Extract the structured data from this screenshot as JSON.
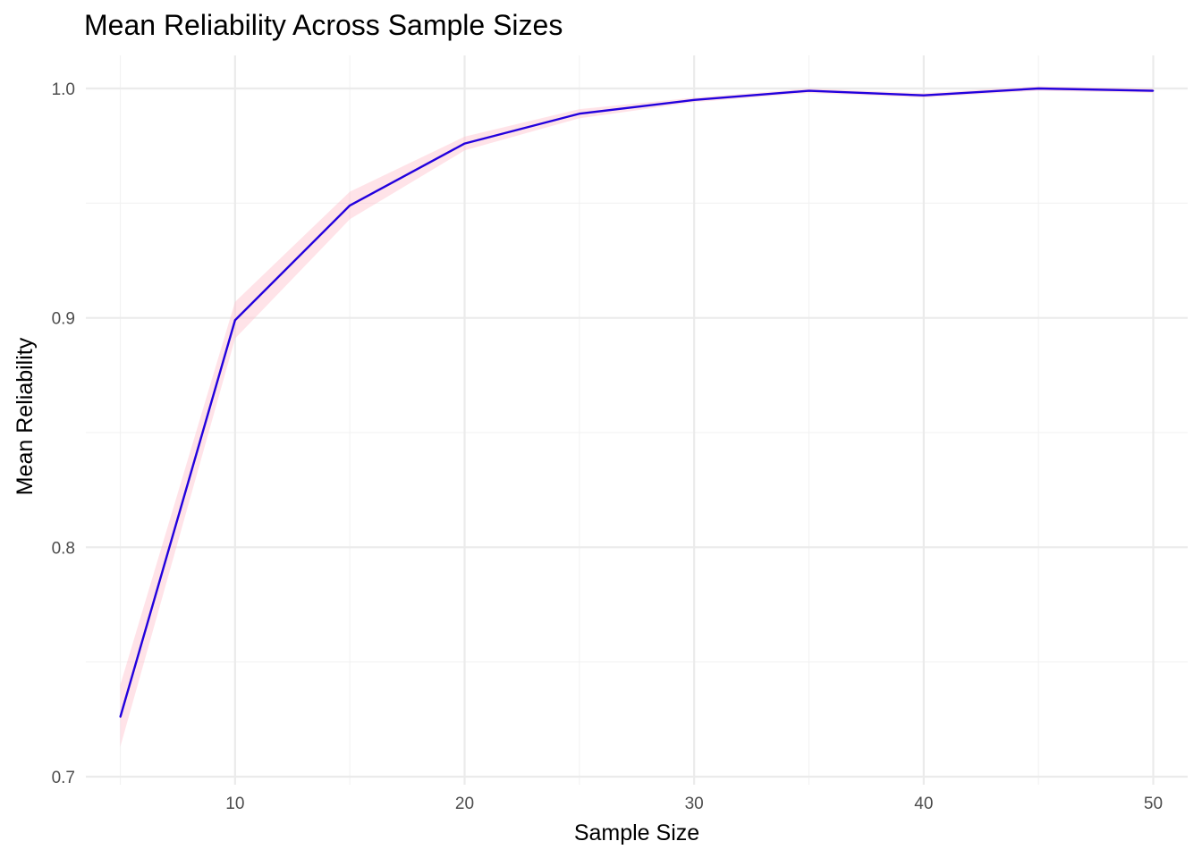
{
  "chart_data": {
    "type": "line",
    "title": "Mean Reliability Across Sample Sizes",
    "xlabel": "Sample Size",
    "ylabel": "Mean Reliability",
    "x": [
      5,
      10,
      15,
      20,
      25,
      30,
      35,
      40,
      45,
      50
    ],
    "series": [
      {
        "values": [
          0.726,
          0.899,
          0.949,
          0.976,
          0.989,
          0.995,
          0.999,
          0.997,
          1.0,
          0.999
        ],
        "lower": [
          0.713,
          0.891,
          0.943,
          0.973,
          0.987,
          0.994,
          0.998,
          0.996,
          0.999,
          0.998
        ],
        "upper": [
          0.74,
          0.907,
          0.955,
          0.979,
          0.991,
          0.996,
          1.0,
          0.998,
          1.001,
          1.0
        ],
        "color": "#2200dd",
        "band_color": "#ffc0cb"
      }
    ],
    "xlim": [
      3.5,
      51.5
    ],
    "ylim": [
      0.7,
      1.0
    ],
    "xticks": [
      10,
      20,
      30,
      40,
      50
    ],
    "xtick_labels": [
      "10",
      "20",
      "30",
      "40",
      "50"
    ],
    "yticks": [
      0.7,
      0.8,
      0.9,
      1.0
    ],
    "ytick_labels": [
      "0.7",
      "0.8",
      "0.9",
      "1.0"
    ],
    "grid": true,
    "legend": "none"
  }
}
